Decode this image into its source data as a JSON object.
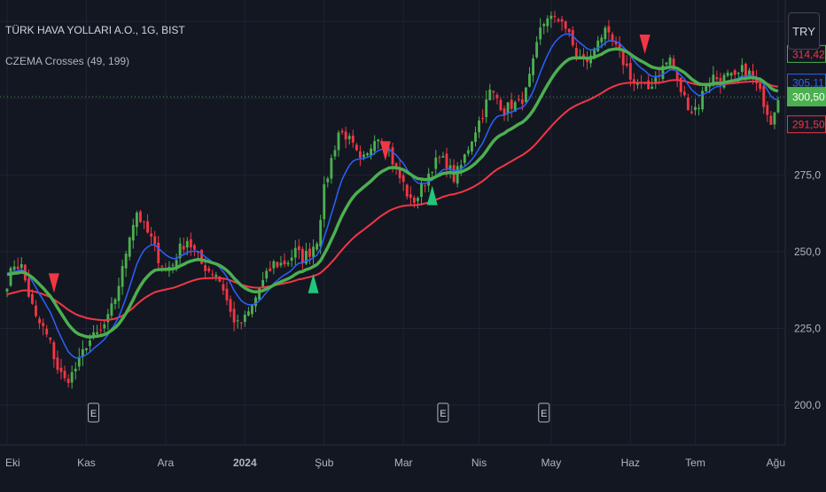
{
  "header": {
    "title": "TÜRK HAVA YOLLARI A.O., 1G, BIST",
    "indicator": "CZEMA Crosses (49, 199)",
    "currency": "TRY"
  },
  "chart_data": {
    "type": "candlestick",
    "ylim": [
      187,
      332
    ],
    "yticks": [
      "275,0",
      "250,0",
      "225,0",
      "200,0"
    ],
    "ytick_values": [
      275,
      250,
      225,
      200
    ],
    "months": [
      {
        "label": "Eki",
        "t": 0,
        "bold": false
      },
      {
        "label": "Kas",
        "t": 22,
        "bold": false
      },
      {
        "label": "Ara",
        "t": 44,
        "bold": false
      },
      {
        "label": "2024",
        "t": 66,
        "bold": true
      },
      {
        "label": "Şub",
        "t": 88,
        "bold": false
      },
      {
        "label": "Mar",
        "t": 110,
        "bold": false
      },
      {
        "label": "Nis",
        "t": 131,
        "bold": false
      },
      {
        "label": "May",
        "t": 151,
        "bold": false
      },
      {
        "label": "Haz",
        "t": 173,
        "bold": false
      },
      {
        "label": "Tem",
        "t": 191,
        "bold": false
      },
      {
        "label": "Ağu",
        "t": 214,
        "bold": false
      }
    ],
    "t_range": [
      0,
      214
    ],
    "price_anchors": [
      [
        0,
        240
      ],
      [
        2,
        246
      ],
      [
        4,
        245
      ],
      [
        6,
        236
      ],
      [
        8,
        228
      ],
      [
        10,
        225
      ],
      [
        12,
        220
      ],
      [
        14,
        212
      ],
      [
        16,
        208
      ],
      [
        18,
        210
      ],
      [
        20,
        214
      ],
      [
        22,
        220
      ],
      [
        24,
        222
      ],
      [
        26,
        224
      ],
      [
        28,
        228
      ],
      [
        30,
        235
      ],
      [
        32,
        244
      ],
      [
        34,
        256
      ],
      [
        36,
        263
      ],
      [
        38,
        258
      ],
      [
        40,
        254
      ],
      [
        42,
        248
      ],
      [
        44,
        244
      ],
      [
        46,
        246
      ],
      [
        48,
        251
      ],
      [
        50,
        254
      ],
      [
        52,
        250
      ],
      [
        54,
        246
      ],
      [
        56,
        244
      ],
      [
        58,
        243
      ],
      [
        60,
        238
      ],
      [
        62,
        230
      ],
      [
        64,
        226
      ],
      [
        66,
        228
      ],
      [
        68,
        232
      ],
      [
        70,
        238
      ],
      [
        72,
        242
      ],
      [
        74,
        246
      ],
      [
        76,
        246
      ],
      [
        78,
        247
      ],
      [
        80,
        250
      ],
      [
        82,
        248
      ],
      [
        84,
        250
      ],
      [
        86,
        254
      ],
      [
        88,
        270
      ],
      [
        90,
        280
      ],
      [
        92,
        289
      ],
      [
        94,
        288
      ],
      [
        96,
        284
      ],
      [
        98,
        279
      ],
      [
        100,
        281
      ],
      [
        102,
        288
      ],
      [
        104,
        287
      ],
      [
        106,
        283
      ],
      [
        108,
        276
      ],
      [
        110,
        272
      ],
      [
        112,
        266
      ],
      [
        114,
        268
      ],
      [
        116,
        273
      ],
      [
        118,
        278
      ],
      [
        120,
        280
      ],
      [
        122,
        279
      ],
      [
        124,
        274
      ],
      [
        126,
        278
      ],
      [
        128,
        284
      ],
      [
        130,
        290
      ],
      [
        132,
        295
      ],
      [
        134,
        302
      ],
      [
        136,
        300
      ],
      [
        138,
        296
      ],
      [
        140,
        298
      ],
      [
        142,
        298
      ],
      [
        144,
        302
      ],
      [
        146,
        311
      ],
      [
        148,
        322
      ],
      [
        150,
        327
      ],
      [
        152,
        325
      ],
      [
        154,
        326
      ],
      [
        156,
        320
      ],
      [
        158,
        314
      ],
      [
        160,
        312
      ],
      [
        162,
        313
      ],
      [
        164,
        320
      ],
      [
        166,
        321
      ],
      [
        168,
        318
      ],
      [
        170,
        314
      ],
      [
        172,
        310
      ],
      [
        174,
        305
      ],
      [
        176,
        304
      ],
      [
        178,
        303
      ],
      [
        180,
        307
      ],
      [
        182,
        310
      ],
      [
        184,
        313
      ],
      [
        186,
        305
      ],
      [
        188,
        300
      ],
      [
        190,
        296
      ],
      [
        192,
        298
      ],
      [
        194,
        305
      ],
      [
        196,
        307
      ],
      [
        198,
        306
      ],
      [
        200,
        307
      ],
      [
        202,
        306
      ],
      [
        204,
        309
      ],
      [
        206,
        308
      ],
      [
        208,
        304
      ],
      [
        210,
        299
      ],
      [
        212,
        293
      ],
      [
        214,
        301
      ]
    ],
    "series": [
      {
        "name": "EMA 49",
        "color": "#4caf50"
      },
      {
        "name": "EMA 199",
        "color": "#f23645"
      }
    ],
    "ema_fast_color": "#2962ff",
    "candle_up_color": "#4caf50",
    "candle_down_color": "#f23645",
    "signals": [
      {
        "type": "sell",
        "t": 13
      },
      {
        "type": "buy",
        "t": 85
      },
      {
        "type": "sell",
        "t": 105
      },
      {
        "type": "buy",
        "t": 118
      },
      {
        "type": "sell",
        "t": 177
      }
    ],
    "earnings": [
      {
        "label": "E",
        "t": 24
      },
      {
        "label": "E",
        "t": 121
      },
      {
        "label": "E",
        "t": 149
      }
    ],
    "price_labels": [
      {
        "value": 314.42,
        "text": "314,42",
        "color": "#f23645",
        "style": "outline-green"
      },
      {
        "value": 305.11,
        "text": "305,11",
        "color": "#2962ff",
        "style": "outline"
      },
      {
        "value": 300.5,
        "text": "300,50",
        "color": "#4caf50",
        "style": "fill"
      },
      {
        "value": 291.5,
        "text": "291,50",
        "color": "#f23645",
        "style": "outline"
      }
    ],
    "last_price": 300.5,
    "grid": true
  }
}
